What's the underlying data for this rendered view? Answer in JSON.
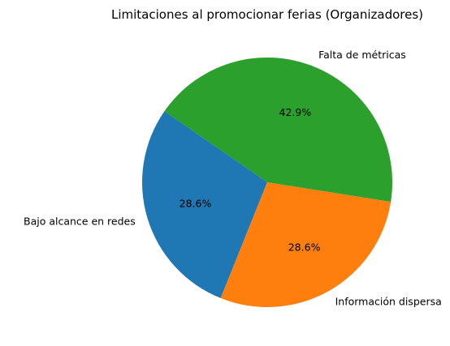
{
  "chart_data": {
    "type": "pie",
    "title": "Limitaciones al promocionar ferias (Organizadores)",
    "labels": [
      "Falta de métricas",
      "Bajo alcance en redes",
      "Información dispersa"
    ],
    "values": [
      42.9,
      28.6,
      28.6
    ],
    "value_labels": [
      "42.9%",
      "28.6%",
      "28.6%"
    ],
    "colors": [
      "#2ca02c",
      "#1f77b4",
      "#ff7f0e"
    ],
    "start_angle_deg": 351,
    "direction": "counterclockwise"
  }
}
